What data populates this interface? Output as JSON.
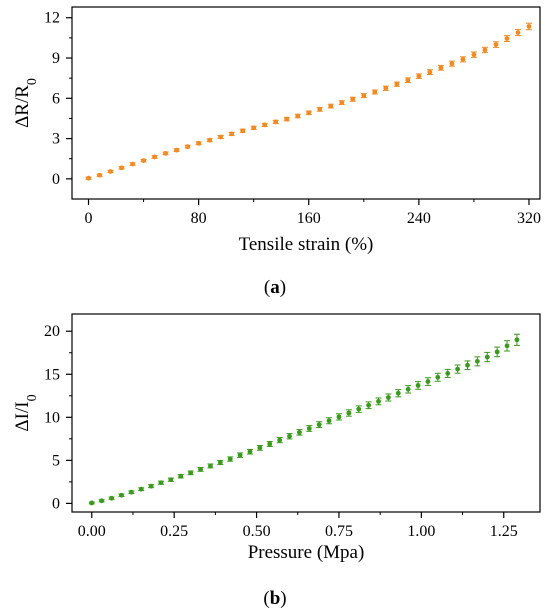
{
  "chart_data": [
    {
      "type": "scatter",
      "panel_label": "a",
      "xlabel": "Tensile strain (%)",
      "ylabel": "ΔR/R",
      "ylabel_sub": "0",
      "xlim": [
        -12,
        328
      ],
      "ylim": [
        -1.5,
        12.8
      ],
      "xticks": [
        0,
        80,
        160,
        240,
        320
      ],
      "yticks": [
        0,
        3,
        6,
        9,
        12
      ],
      "color": "#f28a21",
      "error_bars": true,
      "series": [
        {
          "x": [
            0,
            8,
            16,
            24,
            32,
            40,
            48,
            56,
            64,
            72,
            80,
            88,
            96,
            104,
            112,
            120,
            128,
            136,
            144,
            152,
            160,
            168,
            176,
            184,
            192,
            200,
            208,
            216,
            224,
            232,
            240,
            248,
            256,
            264,
            272,
            280,
            288,
            296,
            304,
            312,
            320
          ],
          "y": [
            0.05,
            0.27,
            0.55,
            0.82,
            1.1,
            1.36,
            1.63,
            1.9,
            2.14,
            2.4,
            2.65,
            2.88,
            3.12,
            3.35,
            3.58,
            3.8,
            4.02,
            4.24,
            4.45,
            4.68,
            4.92,
            5.18,
            5.42,
            5.68,
            5.93,
            6.2,
            6.47,
            6.75,
            7.05,
            7.35,
            7.65,
            7.95,
            8.27,
            8.58,
            8.9,
            9.25,
            9.6,
            10.0,
            10.45,
            10.9,
            11.35
          ],
          "err": [
            0.08,
            0.08,
            0.08,
            0.09,
            0.09,
            0.09,
            0.1,
            0.1,
            0.1,
            0.1,
            0.11,
            0.11,
            0.11,
            0.11,
            0.12,
            0.12,
            0.12,
            0.12,
            0.13,
            0.13,
            0.13,
            0.14,
            0.14,
            0.14,
            0.15,
            0.15,
            0.15,
            0.16,
            0.16,
            0.17,
            0.17,
            0.18,
            0.18,
            0.19,
            0.19,
            0.2,
            0.2,
            0.21,
            0.22,
            0.23,
            0.24
          ]
        }
      ]
    },
    {
      "type": "scatter",
      "panel_label": "b",
      "xlabel": "Pressure (Mpa)",
      "ylabel": "ΔI/I",
      "ylabel_sub": "0",
      "xlim": [
        -0.06,
        1.36
      ],
      "ylim": [
        -1.0,
        22.0
      ],
      "xticks": [
        "0.00",
        "0.25",
        "0.50",
        "0.75",
        "1.00",
        "1.25"
      ],
      "yticks": [
        0,
        5,
        10,
        15,
        20
      ],
      "color": "#3a9a1c",
      "error_bars": true,
      "series": [
        {
          "x": [
            0.0,
            0.03,
            0.06,
            0.09,
            0.12,
            0.15,
            0.18,
            0.21,
            0.24,
            0.27,
            0.3,
            0.33,
            0.36,
            0.39,
            0.42,
            0.45,
            0.48,
            0.51,
            0.54,
            0.57,
            0.6,
            0.63,
            0.66,
            0.69,
            0.72,
            0.75,
            0.78,
            0.81,
            0.84,
            0.87,
            0.9,
            0.93,
            0.96,
            0.99,
            1.02,
            1.05,
            1.08,
            1.11,
            1.14,
            1.17,
            1.2,
            1.23,
            1.26,
            1.29
          ],
          "y": [
            0.05,
            0.3,
            0.6,
            0.95,
            1.3,
            1.65,
            2.0,
            2.4,
            2.75,
            3.15,
            3.55,
            3.95,
            4.35,
            4.75,
            5.15,
            5.6,
            6.0,
            6.45,
            6.9,
            7.35,
            7.8,
            8.25,
            8.7,
            9.15,
            9.6,
            10.05,
            10.5,
            10.95,
            11.4,
            11.85,
            12.3,
            12.8,
            13.25,
            13.7,
            14.15,
            14.65,
            15.1,
            15.6,
            16.05,
            16.5,
            17.0,
            17.6,
            18.3,
            19.0
          ],
          "err": [
            0.1,
            0.12,
            0.13,
            0.14,
            0.15,
            0.16,
            0.17,
            0.18,
            0.19,
            0.2,
            0.21,
            0.22,
            0.23,
            0.24,
            0.25,
            0.26,
            0.27,
            0.28,
            0.29,
            0.3,
            0.31,
            0.32,
            0.33,
            0.34,
            0.35,
            0.36,
            0.37,
            0.38,
            0.39,
            0.4,
            0.41,
            0.42,
            0.43,
            0.44,
            0.45,
            0.46,
            0.47,
            0.48,
            0.5,
            0.52,
            0.54,
            0.56,
            0.6,
            0.65
          ]
        }
      ]
    }
  ]
}
